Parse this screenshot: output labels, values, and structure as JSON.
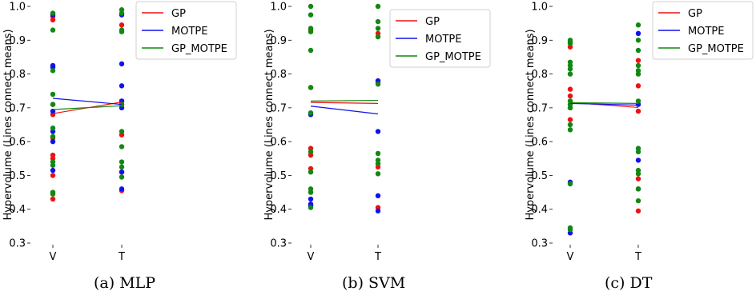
{
  "series_colors": {
    "GP": "#ee1111",
    "MOTPE": "#1111ee",
    "GP_MOTPE": "#118811"
  },
  "chart_data": [
    {
      "type": "scatter",
      "caption": "(a) MLP",
      "ylabel": "Hypervolume (Lines connect means)",
      "categories": [
        "V",
        "T"
      ],
      "ylim": [
        0.3,
        1.0
      ],
      "yticks": [
        "0.3",
        "0.4",
        "0.5",
        "0.6",
        "0.7",
        "0.8",
        "0.9",
        "1.0"
      ],
      "legend_position": "top-right",
      "series": [
        {
          "name": "GP",
          "means": [
            0.683,
            0.717
          ],
          "V": [
            0.43,
            0.5,
            0.55,
            0.56,
            0.61,
            0.68,
            0.71,
            0.96,
            0.97
          ],
          "T": [
            0.455,
            0.51,
            0.62,
            0.71,
            0.72,
            0.945
          ]
        },
        {
          "name": "MOTPE",
          "means": [
            0.728,
            0.71
          ],
          "V": [
            0.515,
            0.6,
            0.63,
            0.69,
            0.82,
            0.825,
            0.975
          ],
          "T": [
            0.46,
            0.51,
            0.7,
            0.72,
            0.765,
            0.83,
            0.975
          ]
        },
        {
          "name": "GP_MOTPE",
          "means": [
            0.695,
            0.706
          ],
          "V": [
            0.445,
            0.45,
            0.53,
            0.54,
            0.615,
            0.64,
            0.71,
            0.74,
            0.81,
            0.93,
            0.98
          ],
          "T": [
            0.495,
            0.525,
            0.54,
            0.585,
            0.63,
            0.71,
            0.925,
            0.93,
            0.98,
            0.99
          ]
        }
      ]
    },
    {
      "type": "scatter",
      "caption": "(b) SVM",
      "ylabel": "Hypervolume (Lines connect means)",
      "categories": [
        "V",
        "T"
      ],
      "ylim": [
        0.3,
        1.0
      ],
      "yticks": [
        "0.3",
        "0.4",
        "0.5",
        "0.6",
        "0.7",
        "0.8",
        "0.9",
        "1.0"
      ],
      "legend_position": "top-right",
      "series": [
        {
          "name": "GP",
          "means": [
            0.716,
            0.713
          ],
          "V": [
            0.41,
            0.52,
            0.56,
            0.58,
            0.76,
            0.93
          ],
          "T": [
            0.405,
            0.525,
            0.775,
            0.92
          ]
        },
        {
          "name": "MOTPE",
          "means": [
            0.705,
            0.682
          ],
          "V": [
            0.41,
            0.415,
            0.43,
            0.68
          ],
          "T": [
            0.395,
            0.44,
            0.63,
            0.78
          ]
        },
        {
          "name": "GP_MOTPE",
          "means": [
            0.72,
            0.722
          ],
          "V": [
            0.405,
            0.45,
            0.46,
            0.51,
            0.57,
            0.685,
            0.76,
            0.87,
            0.925,
            0.935,
            0.975,
            1.0
          ],
          "T": [
            0.505,
            0.535,
            0.545,
            0.565,
            0.77,
            0.91,
            0.935,
            0.955,
            1.0
          ]
        }
      ]
    },
    {
      "type": "scatter",
      "caption": "(c) DT",
      "ylabel": "Hypervolume (Lines connect means)",
      "categories": [
        "V",
        "T"
      ],
      "ylim": [
        0.3,
        1.0
      ],
      "yticks": [
        "0.3",
        "0.4",
        "0.5",
        "0.6",
        "0.7",
        "0.8",
        "0.9",
        "1.0"
      ],
      "legend_position": "top-right",
      "series": [
        {
          "name": "GP",
          "means": [
            0.716,
            0.701
          ],
          "V": [
            0.665,
            0.735,
            0.755,
            0.88
          ],
          "T": [
            0.395,
            0.49,
            0.69,
            0.765,
            0.84
          ]
        },
        {
          "name": "MOTPE",
          "means": [
            0.713,
            0.708
          ],
          "V": [
            0.33,
            0.48,
            0.7
          ],
          "T": [
            0.46,
            0.545,
            0.71,
            0.92
          ]
        },
        {
          "name": "GP_MOTPE",
          "means": [
            0.715,
            0.713
          ],
          "V": [
            0.34,
            0.345,
            0.475,
            0.635,
            0.65,
            0.7,
            0.71,
            0.72,
            0.8,
            0.815,
            0.825,
            0.835,
            0.89,
            0.895,
            0.9
          ],
          "T": [
            0.425,
            0.46,
            0.505,
            0.515,
            0.57,
            0.58,
            0.72,
            0.8,
            0.81,
            0.825,
            0.87,
            0.9,
            0.945
          ]
        }
      ]
    }
  ]
}
